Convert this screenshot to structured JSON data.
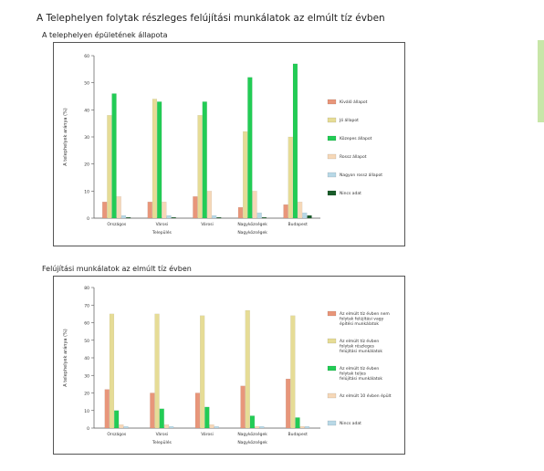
{
  "page": {
    "title": "A Telephelyen folytak részleges felújítási munkálatok az elmúlt tíz évben",
    "accent_color": "#c8e6a8"
  },
  "chart_data": [
    {
      "type": "bar",
      "title": "A telephelyen épületének állapota",
      "ylabel": "A telephelyek aránya (%)",
      "ylim": [
        0,
        60
      ],
      "yticks": [
        0,
        10,
        20,
        30,
        40,
        50,
        60
      ],
      "categories": [
        "Országos",
        "Városi",
        "Városi",
        "Nagyközségek",
        "Budapest"
      ],
      "group_labels": [
        {
          "label": "Település",
          "span": [
            0,
            2
          ]
        },
        {
          "label": "Nagyközségek",
          "span": [
            2,
            4
          ]
        }
      ],
      "legend_position": "right",
      "series": [
        {
          "name": "Kiváló állapot",
          "color": "#e8967a",
          "values": [
            6,
            6,
            8,
            4,
            5
          ]
        },
        {
          "name": "Jó állapot",
          "color": "#e6dc96",
          "values": [
            38,
            44,
            38,
            32,
            30
          ]
        },
        {
          "name": "Közepes állapot",
          "color": "#22cc55",
          "values": [
            46,
            43,
            43,
            52,
            57
          ]
        },
        {
          "name": "Rossz állapot",
          "color": "#f6d8b8",
          "values": [
            8,
            6,
            10,
            10,
            6
          ]
        },
        {
          "name": "Nagyon rossz állapot",
          "color": "#b8d8e6",
          "values": [
            1,
            1,
            1,
            2,
            2
          ]
        },
        {
          "name": "Nincs adat",
          "color": "#1a5c2a",
          "values": [
            0.3,
            0.3,
            0.3,
            0.3,
            1
          ]
        }
      ]
    },
    {
      "type": "bar",
      "title": "Felújítási munkálatok az elmúlt tíz évben",
      "ylabel": "A telephelyek aránya (%)",
      "ylim": [
        0,
        80
      ],
      "yticks": [
        0,
        10,
        20,
        30,
        40,
        50,
        60,
        70,
        80
      ],
      "categories": [
        "Országos",
        "Városi",
        "Városi",
        "Nagyközségek",
        "Budapest"
      ],
      "group_labels": [
        {
          "label": "Település",
          "span": [
            0,
            2
          ]
        },
        {
          "label": "Nagyközségek",
          "span": [
            2,
            4
          ]
        }
      ],
      "legend_position": "right",
      "series": [
        {
          "name": "Az elmúlt tíz évben nem folytak felújítási vagy építési munkálatok",
          "color": "#e8967a",
          "values": [
            22,
            20,
            20,
            24,
            28
          ]
        },
        {
          "name": "Az elmúlt tíz évben folytak részleges felújítási munkálatok",
          "color": "#e6dc96",
          "values": [
            65,
            65,
            64,
            67,
            64
          ]
        },
        {
          "name": "Az elmúlt tíz évben folytak teljes felújítási munkálatok",
          "color": "#22cc55",
          "values": [
            10,
            11,
            12,
            7,
            6
          ]
        },
        {
          "name": "Az elmúlt 10 évben épült",
          "color": "#f6d8b8",
          "values": [
            2,
            2,
            2,
            1,
            1
          ]
        },
        {
          "name": "Nincs adat",
          "color": "#b8d8e6",
          "values": [
            1,
            1,
            1,
            1,
            1
          ]
        }
      ]
    }
  ]
}
